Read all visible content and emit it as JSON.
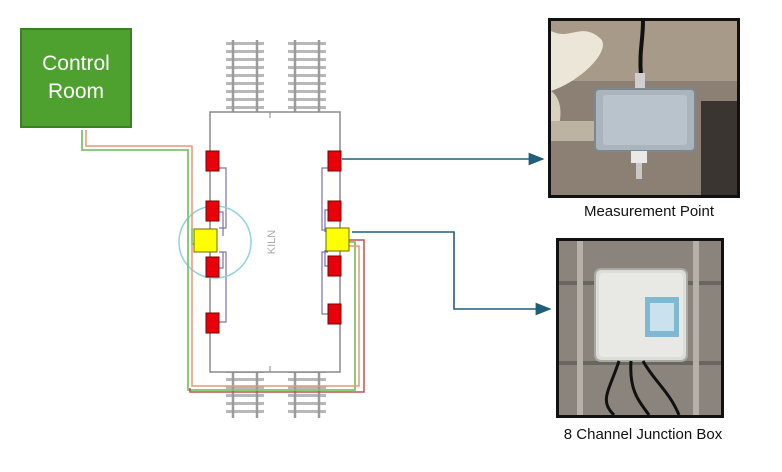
{
  "control_room": {
    "line1": "Control",
    "line2": "Room"
  },
  "kiln": {
    "label": "KILN"
  },
  "measurement_point": {
    "caption": "Measurement Point"
  },
  "junction_box": {
    "caption": "8 Channel Junction Box"
  },
  "colors": {
    "control_room_fill": "#4ea12f",
    "sensor_red": "#e8000b",
    "junction_yellow": "#ffff00",
    "arrow_blue": "#1f5f7a",
    "cable_green": "#7dc46a",
    "cable_orange": "#e39a76",
    "cable_red": "#c0504d",
    "highlight_circle": "#8fd3e0"
  },
  "icons": [
    "track-icon",
    "sensor-icon",
    "junction-icon",
    "arrow-icon"
  ]
}
